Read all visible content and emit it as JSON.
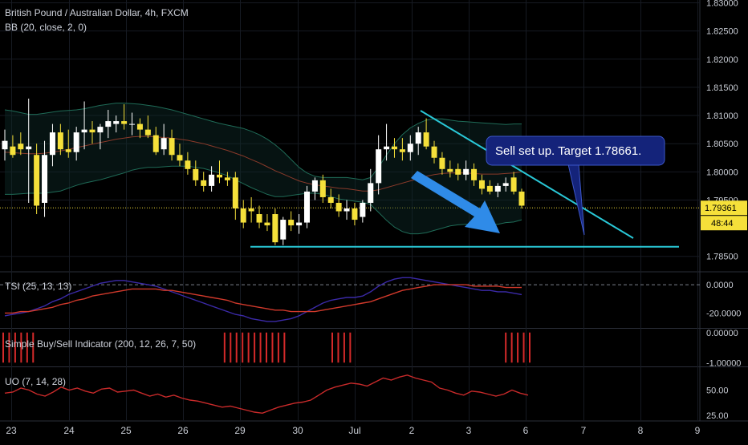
{
  "title": "British Pound / Australian Dollar, 4h, FXCM",
  "colors": {
    "background": "#000000",
    "grid": "#161a22",
    "axis_text": "#c8ccd4",
    "candle_up": "#ffffff",
    "candle_down": "#f5e03a",
    "bb_band": "#1f6b57",
    "bb_basis": "#8a3a2a",
    "tsi": "#3b2aa8",
    "tsi_signal": "#d0392b",
    "signal_bar": "#d42a2a",
    "uo": "#c82a2a",
    "trendline": "#29c7d6",
    "arrow": "#2f8be8",
    "callout_bg": "#14237a",
    "callout_border": "#3d57c9",
    "price_tag": "#f5e03a"
  },
  "chart_data": [
    {
      "type": "candlestick",
      "pane": "price",
      "indicator_label": "BB (20, close, 2, 0)",
      "price_axis_ticks": [
        "1.83000",
        "1.82500",
        "1.82000",
        "1.81500",
        "1.81000",
        "1.80500",
        "1.80000",
        "1.79500",
        "1.78500"
      ],
      "ylim": [
        1.7824,
        1.8305
      ],
      "x_axis_labels": [
        "23",
        "24",
        "25",
        "26",
        "29",
        "30",
        "Jul",
        "2",
        "3",
        "6",
        "7",
        "8",
        "9"
      ],
      "last_price": "1.79361",
      "countdown": "48:44",
      "candles": [
        {
          "o": 1.804,
          "h": 1.8075,
          "l": 1.802,
          "c": 1.8055
        },
        {
          "o": 1.8045,
          "h": 1.8065,
          "l": 1.8025,
          "c": 1.803
        },
        {
          "o": 1.805,
          "h": 1.807,
          "l": 1.803,
          "c": 1.804
        },
        {
          "o": 1.804,
          "h": 1.813,
          "l": 1.7945,
          "c": 1.8045
        },
        {
          "o": 1.803,
          "h": 1.805,
          "l": 1.7925,
          "c": 1.794
        },
        {
          "o": 1.7945,
          "h": 1.8055,
          "l": 1.792,
          "c": 1.803
        },
        {
          "o": 1.803,
          "h": 1.8085,
          "l": 1.801,
          "c": 1.807
        },
        {
          "o": 1.807,
          "h": 1.8085,
          "l": 1.803,
          "c": 1.804
        },
        {
          "o": 1.804,
          "h": 1.8075,
          "l": 1.8025,
          "c": 1.8035
        },
        {
          "o": 1.8035,
          "h": 1.808,
          "l": 1.802,
          "c": 1.807
        },
        {
          "o": 1.807,
          "h": 1.8125,
          "l": 1.804,
          "c": 1.8075
        },
        {
          "o": 1.8075,
          "h": 1.809,
          "l": 1.805,
          "c": 1.807
        },
        {
          "o": 1.807,
          "h": 1.8085,
          "l": 1.804,
          "c": 1.808
        },
        {
          "o": 1.808,
          "h": 1.811,
          "l": 1.806,
          "c": 1.809
        },
        {
          "o": 1.8085,
          "h": 1.81,
          "l": 1.807,
          "c": 1.809
        },
        {
          "o": 1.809,
          "h": 1.812,
          "l": 1.8075,
          "c": 1.8085
        },
        {
          "o": 1.8085,
          "h": 1.8105,
          "l": 1.8065,
          "c": 1.8085
        },
        {
          "o": 1.8085,
          "h": 1.8095,
          "l": 1.806,
          "c": 1.8075
        },
        {
          "o": 1.8075,
          "h": 1.81,
          "l": 1.806,
          "c": 1.8065
        },
        {
          "o": 1.8065,
          "h": 1.808,
          "l": 1.803,
          "c": 1.8035
        },
        {
          "o": 1.804,
          "h": 1.8085,
          "l": 1.803,
          "c": 1.806
        },
        {
          "o": 1.806,
          "h": 1.8075,
          "l": 1.802,
          "c": 1.803
        },
        {
          "o": 1.803,
          "h": 1.805,
          "l": 1.801,
          "c": 1.802
        },
        {
          "o": 1.802,
          "h": 1.8035,
          "l": 1.7995,
          "c": 1.8005
        },
        {
          "o": 1.8005,
          "h": 1.802,
          "l": 1.7975,
          "c": 1.7985
        },
        {
          "o": 1.7985,
          "h": 1.8,
          "l": 1.7965,
          "c": 1.7975
        },
        {
          "o": 1.7975,
          "h": 1.801,
          "l": 1.7965,
          "c": 1.7995
        },
        {
          "o": 1.7995,
          "h": 1.802,
          "l": 1.798,
          "c": 1.799
        },
        {
          "o": 1.799,
          "h": 1.8,
          "l": 1.7975,
          "c": 1.7985
        },
        {
          "o": 1.799,
          "h": 1.8,
          "l": 1.7915,
          "c": 1.7935
        },
        {
          "o": 1.7935,
          "h": 1.795,
          "l": 1.79,
          "c": 1.791
        },
        {
          "o": 1.7935,
          "h": 1.7955,
          "l": 1.791,
          "c": 1.793
        },
        {
          "o": 1.7925,
          "h": 1.794,
          "l": 1.79,
          "c": 1.791
        },
        {
          "o": 1.791,
          "h": 1.7925,
          "l": 1.7895,
          "c": 1.7905
        },
        {
          "o": 1.7925,
          "h": 1.7935,
          "l": 1.787,
          "c": 1.7875
        },
        {
          "o": 1.788,
          "h": 1.792,
          "l": 1.787,
          "c": 1.7915
        },
        {
          "o": 1.7915,
          "h": 1.793,
          "l": 1.7895,
          "c": 1.7905
        },
        {
          "o": 1.7905,
          "h": 1.7925,
          "l": 1.789,
          "c": 1.791
        },
        {
          "o": 1.791,
          "h": 1.7975,
          "l": 1.79,
          "c": 1.7965
        },
        {
          "o": 1.7965,
          "h": 1.799,
          "l": 1.795,
          "c": 1.7985
        },
        {
          "o": 1.7985,
          "h": 1.7995,
          "l": 1.7945,
          "c": 1.7955
        },
        {
          "o": 1.7955,
          "h": 1.797,
          "l": 1.7935,
          "c": 1.7945
        },
        {
          "o": 1.7945,
          "h": 1.796,
          "l": 1.792,
          "c": 1.793
        },
        {
          "o": 1.793,
          "h": 1.795,
          "l": 1.7915,
          "c": 1.7935
        },
        {
          "o": 1.7935,
          "h": 1.7945,
          "l": 1.7905,
          "c": 1.7915
        },
        {
          "o": 1.792,
          "h": 1.795,
          "l": 1.791,
          "c": 1.7945
        },
        {
          "o": 1.7945,
          "h": 1.8005,
          "l": 1.793,
          "c": 1.798
        },
        {
          "o": 1.798,
          "h": 1.8065,
          "l": 1.796,
          "c": 1.804
        },
        {
          "o": 1.804,
          "h": 1.8085,
          "l": 1.802,
          "c": 1.8045
        },
        {
          "o": 1.8045,
          "h": 1.806,
          "l": 1.8025,
          "c": 1.804
        },
        {
          "o": 1.804,
          "h": 1.806,
          "l": 1.802,
          "c": 1.8035
        },
        {
          "o": 1.8035,
          "h": 1.8065,
          "l": 1.802,
          "c": 1.805
        },
        {
          "o": 1.805,
          "h": 1.808,
          "l": 1.803,
          "c": 1.807
        },
        {
          "o": 1.807,
          "h": 1.8095,
          "l": 1.804,
          "c": 1.8045
        },
        {
          "o": 1.8045,
          "h": 1.8055,
          "l": 1.8015,
          "c": 1.8025
        },
        {
          "o": 1.8025,
          "h": 1.8035,
          "l": 1.7995,
          "c": 1.8005
        },
        {
          "o": 1.8005,
          "h": 1.802,
          "l": 1.799,
          "c": 1.8
        },
        {
          "o": 1.8005,
          "h": 1.8015,
          "l": 1.7985,
          "c": 1.7995
        },
        {
          "o": 1.7995,
          "h": 1.802,
          "l": 1.7985,
          "c": 1.8005
        },
        {
          "o": 1.8005,
          "h": 1.8015,
          "l": 1.7975,
          "c": 1.7985
        },
        {
          "o": 1.7985,
          "h": 1.7995,
          "l": 1.796,
          "c": 1.797
        },
        {
          "o": 1.7975,
          "h": 1.7985,
          "l": 1.796,
          "c": 1.7965
        },
        {
          "o": 1.7965,
          "h": 1.798,
          "l": 1.7955,
          "c": 1.7975
        },
        {
          "o": 1.7975,
          "h": 1.799,
          "l": 1.7965,
          "c": 1.798
        },
        {
          "o": 1.799,
          "h": 1.8,
          "l": 1.796,
          "c": 1.7965
        },
        {
          "o": 1.7965,
          "h": 1.797,
          "l": 1.7935,
          "c": 1.794
        }
      ],
      "bb_upper": [
        1.811,
        1.8108,
        1.8105,
        1.8102,
        1.8102,
        1.8104,
        1.8106,
        1.8108,
        1.8109,
        1.811,
        1.8112,
        1.8115,
        1.8118,
        1.812,
        1.8122,
        1.8122,
        1.8121,
        1.812,
        1.8118,
        1.8116,
        1.8113,
        1.811,
        1.8106,
        1.8102,
        1.8098,
        1.8094,
        1.809,
        1.8086,
        1.8083,
        1.808,
        1.8077,
        1.8072,
        1.8066,
        1.8058,
        1.8048,
        1.8036,
        1.8022,
        1.8008,
        1.7998,
        1.7992,
        1.799,
        1.799,
        1.799,
        1.799,
        1.7988,
        1.7986,
        1.799,
        1.8008,
        1.803,
        1.805,
        1.8066,
        1.8078,
        1.8086,
        1.8092,
        1.8094,
        1.8094,
        1.8092,
        1.809,
        1.8089,
        1.8088,
        1.8087,
        1.8086,
        1.8085,
        1.8084,
        1.8085,
        1.8085
      ],
      "bb_basis": [
        1.8035,
        1.8034,
        1.8033,
        1.8032,
        1.8032,
        1.8033,
        1.8035,
        1.8037,
        1.804,
        1.8043,
        1.8046,
        1.8049,
        1.8052,
        1.8055,
        1.8058,
        1.806,
        1.8062,
        1.8063,
        1.8063,
        1.8062,
        1.8061,
        1.806,
        1.8058,
        1.8056,
        1.8053,
        1.805,
        1.8046,
        1.8042,
        1.8038,
        1.8033,
        1.8028,
        1.8022,
        1.8016,
        1.8009,
        1.8002,
        1.7996,
        1.799,
        1.7984,
        1.798,
        1.7977,
        1.7975,
        1.7973,
        1.7971,
        1.797,
        1.7968,
        1.7966,
        1.7966,
        1.7968,
        1.7972,
        1.7976,
        1.798,
        1.7984,
        1.7988,
        1.7992,
        1.7995,
        1.7997,
        1.7998,
        1.7998,
        1.7998,
        1.7997,
        1.7996,
        1.7996,
        1.7996,
        1.7997,
        1.7998,
        1.8
      ],
      "bb_lower": [
        1.796,
        1.796,
        1.7961,
        1.7962,
        1.7962,
        1.7962,
        1.7964,
        1.7966,
        1.7971,
        1.7976,
        1.798,
        1.7983,
        1.7986,
        1.799,
        1.7994,
        1.7998,
        1.8003,
        1.8006,
        1.8008,
        1.8008,
        1.8009,
        1.801,
        1.801,
        1.801,
        1.8008,
        1.8006,
        1.8002,
        1.7998,
        1.7993,
        1.7986,
        1.7979,
        1.7972,
        1.7966,
        1.796,
        1.7956,
        1.7956,
        1.7958,
        1.796,
        1.7962,
        1.7962,
        1.796,
        1.7956,
        1.7952,
        1.795,
        1.7948,
        1.7946,
        1.7942,
        1.7928,
        1.7914,
        1.7902,
        1.7894,
        1.789,
        1.789,
        1.7892,
        1.7896,
        1.79,
        1.7904,
        1.7906,
        1.7907,
        1.7906,
        1.7905,
        1.7906,
        1.7907,
        1.791,
        1.7911,
        1.7915
      ],
      "annotations": {
        "support_level": 1.7867,
        "callout_text": "Sell set up. Target 1.78661."
      }
    },
    {
      "type": "line",
      "pane": "tsi",
      "indicator_label": "TSI (25, 13, 13)",
      "axis_ticks": [
        "0.0000",
        "-20.0000"
      ],
      "ylim": [
        -30,
        8
      ],
      "series": [
        {
          "values": [
            -22,
            -21,
            -20,
            -19,
            -17,
            -15,
            -12,
            -10,
            -7,
            -5,
            -3,
            -1,
            1,
            2,
            3,
            3,
            2,
            1,
            0,
            -1,
            -3,
            -5,
            -7,
            -9,
            -11,
            -13,
            -15,
            -17,
            -19,
            -21,
            -22,
            -24,
            -25,
            -26,
            -26,
            -25,
            -24,
            -22,
            -19,
            -16,
            -13,
            -11,
            -10,
            -9,
            -9,
            -8,
            -5,
            -1,
            2,
            4,
            5,
            5,
            4,
            3,
            2,
            1,
            0,
            -1,
            -2,
            -3,
            -4,
            -4,
            -5,
            -5,
            -6,
            -7
          ]
        },
        {
          "values": [
            -20,
            -20,
            -19,
            -19,
            -18,
            -17,
            -16,
            -14,
            -13,
            -11,
            -10,
            -8,
            -7,
            -6,
            -5,
            -4,
            -3,
            -3,
            -3,
            -3,
            -4,
            -4,
            -5,
            -6,
            -7,
            -8,
            -9,
            -10,
            -11,
            -13,
            -14,
            -15,
            -16,
            -17,
            -18,
            -18,
            -19,
            -19,
            -19,
            -19,
            -18,
            -17,
            -16,
            -15,
            -14,
            -13,
            -12,
            -10,
            -8,
            -6,
            -4,
            -3,
            -2,
            -1,
            0,
            0,
            0,
            0,
            0,
            -1,
            -1,
            -1,
            -1,
            -2,
            -2,
            -2
          ]
        }
      ]
    },
    {
      "type": "bar",
      "pane": "signals",
      "indicator_label": "Simple Buy/Sell Indicator (200, 12, 26, 7, 50)",
      "axis_ticks": [
        "0.00000",
        "-1.00000"
      ],
      "ylim": [
        -1.1,
        0.1
      ],
      "values": [
        -1,
        -1,
        -1,
        -1,
        -1,
        -1,
        0,
        0,
        0,
        0,
        0,
        0,
        0,
        0,
        0,
        0,
        0,
        0,
        0,
        0,
        0,
        0,
        0,
        0,
        0,
        0,
        0,
        0,
        0,
        0,
        0,
        0,
        0,
        0,
        0,
        0,
        0,
        -1,
        -1,
        -1,
        -1,
        -1,
        -1,
        -1,
        -1,
        -1,
        -1,
        -1,
        0,
        0,
        0,
        0,
        0,
        0,
        0,
        -1,
        -1,
        -1,
        -1,
        0,
        0,
        0,
        0,
        0,
        0,
        0,
        0,
        0,
        0,
        0,
        0,
        0,
        0,
        0,
        0,
        0,
        0,
        0,
        0,
        0,
        0,
        0,
        0,
        0,
        -1,
        -1,
        -1,
        -1,
        -1
      ]
    },
    {
      "type": "line",
      "pane": "uo",
      "indicator_label": "UO (7, 14, 28)",
      "axis_ticks": [
        "50.00",
        "25.00"
      ],
      "ylim": [
        20,
        72
      ],
      "series": [
        {
          "values": [
            47,
            48,
            52,
            50,
            46,
            44,
            48,
            53,
            50,
            52,
            49,
            47,
            51,
            52,
            48,
            49,
            50,
            47,
            44,
            46,
            43,
            45,
            42,
            40,
            39,
            37,
            35,
            33,
            34,
            32,
            30,
            28,
            27,
            30,
            33,
            35,
            37,
            38,
            40,
            45,
            50,
            53,
            55,
            57,
            56,
            54,
            58,
            62,
            60,
            63,
            65,
            62,
            60,
            58,
            52,
            50,
            47,
            45,
            49,
            48,
            46,
            44,
            46,
            50,
            47,
            45
          ]
        }
      ]
    }
  ]
}
